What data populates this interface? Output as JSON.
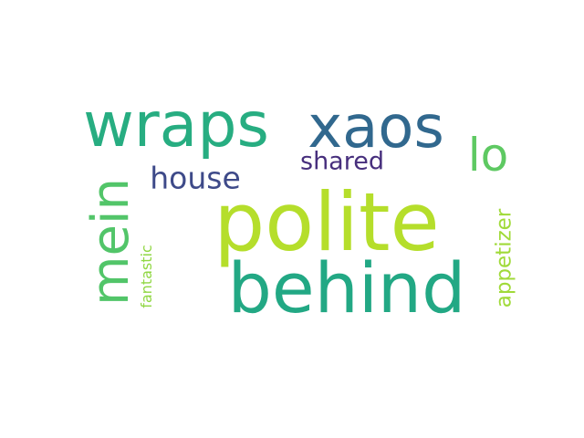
{
  "wordcloud": {
    "words": [
      {
        "key": "polite",
        "text": "polite",
        "color": "#b5de2b"
      },
      {
        "key": "behind",
        "text": "behind",
        "color": "#22a884"
      },
      {
        "key": "wraps",
        "text": "wraps",
        "color": "#27ad81"
      },
      {
        "key": "xaos",
        "text": "xaos",
        "color": "#31688e"
      },
      {
        "key": "mein",
        "text": "mein",
        "color": "#52c569"
      },
      {
        "key": "lo",
        "text": "lo",
        "color": "#5ec962"
      },
      {
        "key": "house",
        "text": "house",
        "color": "#3e4a89"
      },
      {
        "key": "shared",
        "text": "shared",
        "color": "#472f7d"
      },
      {
        "key": "appetizer",
        "text": "appetizer",
        "color": "#a0da39"
      },
      {
        "key": "fantastic",
        "text": "fantastic",
        "color": "#90d743"
      }
    ]
  }
}
